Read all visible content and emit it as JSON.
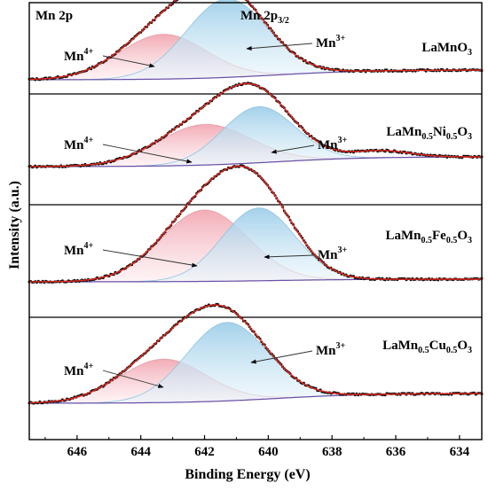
{
  "chart_data": {
    "type": "line",
    "title": "",
    "xlabel": "Binding Energy (eV)",
    "ylabel": "Intensity (a.u.)",
    "xlim": [
      647.5,
      633.3
    ],
    "x_reversed": true,
    "x_ticks": [
      646,
      644,
      642,
      640,
      638,
      636,
      634
    ],
    "top_labels": {
      "region": "Mn 2p",
      "peak_main": "Mn 2p",
      "peak_sub": "3/2"
    },
    "colors": {
      "mn4_fill": "#f7c6cd",
      "mn3_fill": "#bfe0f2",
      "fit_line": "#e8281e",
      "background_line": "#6a4fa8",
      "data_points": "#111111"
    },
    "panels": [
      {
        "sample": {
          "parts": [
            [
              "LaMnO",
              ""
            ],
            [
              "3",
              "sub"
            ]
          ]
        },
        "mn4": {
          "center": 643.3,
          "fwhm": 3.2,
          "height": 0.32,
          "label": "Mn",
          "sup": "4+"
        },
        "mn3": {
          "center": 641.3,
          "fwhm": 3.0,
          "height": 0.56,
          "label": "Mn",
          "sup": "3+"
        },
        "satellite": {
          "center": 636.5,
          "fwhm": 2.0,
          "height": 0.0
        },
        "background": {
          "start": 0.0,
          "end": 0.07
        }
      },
      {
        "sample": {
          "parts": [
            [
              "LaMn",
              ""
            ],
            [
              "0.5",
              "sub"
            ],
            [
              "Ni",
              ""
            ],
            [
              "0.5",
              "sub"
            ],
            [
              "O",
              ""
            ],
            [
              "3",
              "sub"
            ]
          ]
        },
        "mn4": {
          "center": 642.0,
          "fwhm": 3.4,
          "height": 0.29,
          "label": "Mn",
          "sup": "4+"
        },
        "mn3": {
          "center": 640.3,
          "fwhm": 2.7,
          "height": 0.4,
          "label": "Mn",
          "sup": "3+"
        },
        "satellite": {
          "center": 636.5,
          "fwhm": 2.2,
          "height": 0.05
        },
        "background": {
          "start": 0.0,
          "end": 0.07
        }
      },
      {
        "sample": {
          "parts": [
            [
              "LaMn",
              ""
            ],
            [
              "0.5",
              "sub"
            ],
            [
              "Fe",
              ""
            ],
            [
              "0.5",
              "sub"
            ],
            [
              "O",
              ""
            ],
            [
              "3",
              "sub"
            ]
          ]
        },
        "mn4": {
          "center": 642.0,
          "fwhm": 3.2,
          "height": 0.53,
          "label": "Mn",
          "sup": "4+"
        },
        "mn3": {
          "center": 640.3,
          "fwhm": 2.7,
          "height": 0.54,
          "label": "Mn",
          "sup": "3+"
        },
        "satellite": {
          "center": 636.5,
          "fwhm": 2.0,
          "height": 0.0
        },
        "background": {
          "start": 0.0,
          "end": 0.02
        }
      },
      {
        "sample": {
          "parts": [
            [
              "LaMn",
              ""
            ],
            [
              "0.5",
              "sub"
            ],
            [
              "Cu",
              ""
            ],
            [
              "0.5",
              "sub"
            ],
            [
              "O",
              ""
            ],
            [
              "3",
              "sub"
            ]
          ]
        },
        "mn4": {
          "center": 643.3,
          "fwhm": 3.2,
          "height": 0.31,
          "label": "Mn",
          "sup": "4+"
        },
        "mn3": {
          "center": 641.3,
          "fwhm": 3.0,
          "height": 0.56,
          "label": "Mn",
          "sup": "3+"
        },
        "satellite": {
          "center": 636.5,
          "fwhm": 2.0,
          "height": 0.0
        },
        "background": {
          "start": 0.0,
          "end": 0.07
        }
      }
    ]
  }
}
